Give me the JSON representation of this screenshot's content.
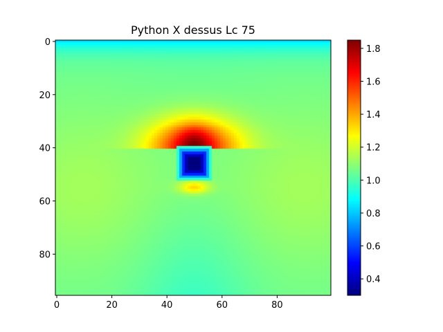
{
  "chart_data": {
    "type": "heatmap",
    "title": "Python X dessus Lc 75",
    "xlabel": "",
    "ylabel": "",
    "x_range": [
      -0.5,
      99.5
    ],
    "y_range": [
      95.5,
      -0.5
    ],
    "x_ticks": [
      0,
      20,
      40,
      60,
      80
    ],
    "y_ticks": [
      0,
      20,
      40,
      60,
      80
    ],
    "colormap": "jet",
    "colorbar": {
      "min": 0.3,
      "max": 1.85,
      "ticks": [
        0.4,
        0.6,
        0.8,
        1.0,
        1.2,
        1.4,
        1.6,
        1.8
      ],
      "tick_labels": [
        "0.4",
        "0.6",
        "0.8",
        "1.0",
        "1.2",
        "1.4",
        "1.6",
        "1.8"
      ]
    },
    "grid": false,
    "approx_field": {
      "background_value": 1.05,
      "top_edge_value": 0.85,
      "hot_region": {
        "x_center": 50,
        "y_center": 35,
        "peak_value": 1.85
      },
      "cold_region": {
        "x_range": [
          44,
          56
        ],
        "y_range": [
          40,
          52
        ],
        "min_value": 0.3
      }
    }
  }
}
